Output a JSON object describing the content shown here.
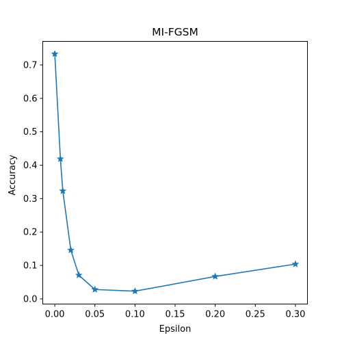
{
  "chart_data": {
    "type": "line",
    "title": "MI-FGSM",
    "xlabel": "Epsilon",
    "ylabel": "Accuracy",
    "xlim": [
      -0.015,
      0.315
    ],
    "ylim": [
      -0.0155,
      0.7705
    ],
    "xticks": [
      0.0,
      0.05,
      0.1,
      0.15,
      0.2,
      0.25,
      0.3
    ],
    "xtick_labels": [
      "0.00",
      "0.05",
      "0.10",
      "0.15",
      "0.20",
      "0.25",
      "0.30"
    ],
    "yticks": [
      0.0,
      0.1,
      0.2,
      0.3,
      0.4,
      0.5,
      0.6,
      0.7
    ],
    "ytick_labels": [
      "0.0",
      "0.1",
      "0.2",
      "0.3",
      "0.4",
      "0.5",
      "0.6",
      "0.7"
    ],
    "grid": false,
    "marker": "star",
    "color": "#1f77b4",
    "series": [
      {
        "x": [
          0.0,
          0.007,
          0.01,
          0.02,
          0.03,
          0.05,
          0.1,
          0.2,
          0.3
        ],
        "y": [
          0.733,
          0.419,
          0.323,
          0.146,
          0.071,
          0.028,
          0.023,
          0.067,
          0.104
        ]
      }
    ]
  }
}
